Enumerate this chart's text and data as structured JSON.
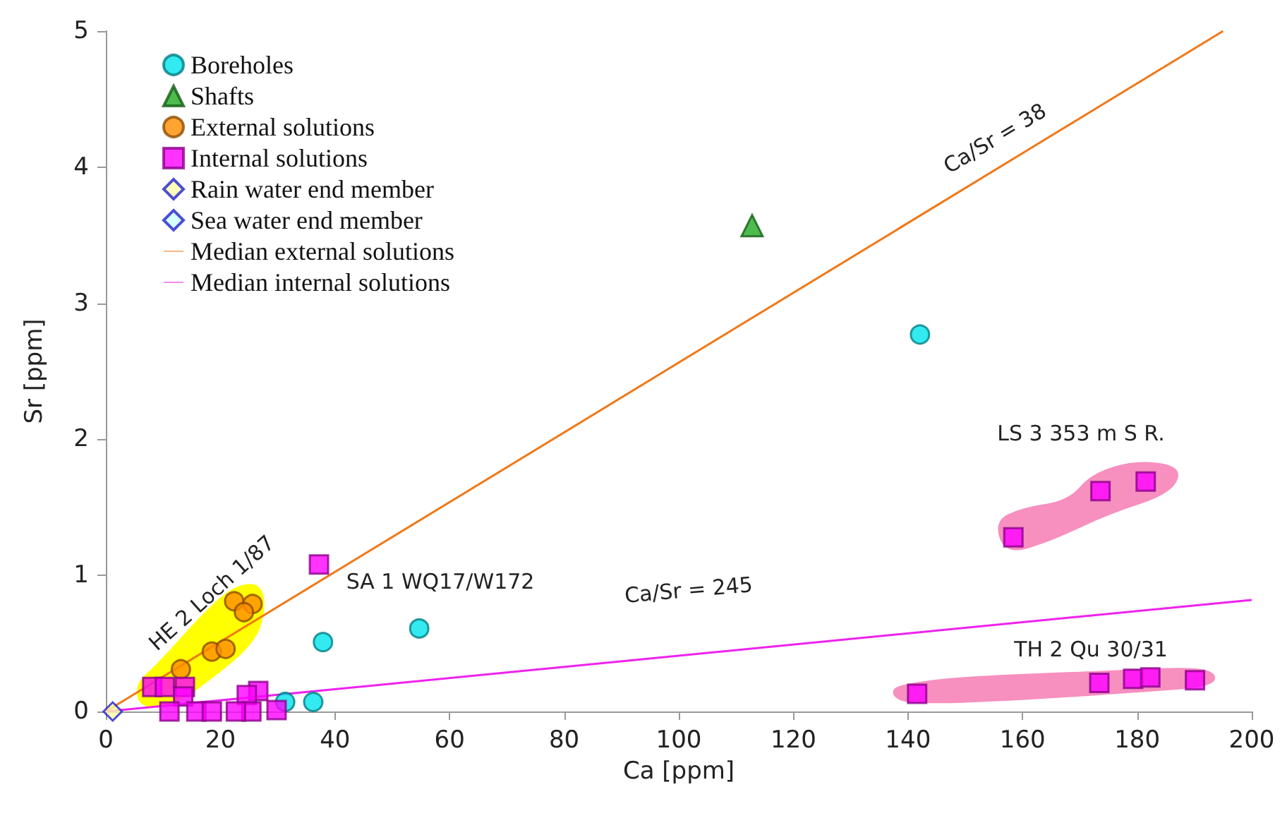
{
  "chart_data": {
    "type": "scatter",
    "xlabel": "Ca [ppm]",
    "ylabel": "Sr [ppm]",
    "xlim": [
      0,
      200
    ],
    "ylim": [
      0,
      5
    ],
    "xticks": [
      0,
      20,
      40,
      60,
      80,
      100,
      120,
      140,
      160,
      180,
      200
    ],
    "yticks": [
      0,
      1,
      2,
      3,
      4,
      5
    ],
    "grid": false,
    "legend": "top left",
    "series": [
      {
        "name": "Boreholes",
        "color": "#00e5ee",
        "marker": "circle",
        "x": [
          142.1,
          54.7,
          37.9,
          31.3,
          36.2
        ],
        "values": [
          2.77,
          0.61,
          0.51,
          0.07,
          0.07
        ]
      },
      {
        "name": "Shafts",
        "color": "#22aa22",
        "marker": "triangle",
        "x": [
          112.8
        ],
        "values": [
          3.57
        ]
      },
      {
        "name": "External solutions",
        "color": "#ff8c00",
        "marker": "circle",
        "x": [
          22.4,
          25.6,
          24.1,
          18.5,
          20.9,
          13.1
        ],
        "values": [
          0.81,
          0.79,
          0.73,
          0.44,
          0.46,
          0.31
        ]
      },
      {
        "name": "Internal solutions",
        "color": "#ff00ff",
        "marker": "square",
        "x": [
          37.2,
          158.4,
          173.6,
          181.5,
          141.6,
          173.4,
          179.3,
          182.3,
          190.1,
          8.1,
          10.3,
          13.8,
          13.5,
          11.1,
          15.8,
          18.5,
          26.6,
          24.6,
          25.4,
          29.8,
          22.7
        ],
        "values": [
          1.08,
          1.28,
          1.62,
          1.69,
          0.13,
          0.21,
          0.24,
          0.25,
          0.23,
          0.18,
          0.18,
          0.18,
          0.11,
          0,
          0,
          0,
          0.15,
          0.12,
          0,
          0.01,
          0
        ]
      },
      {
        "name": "Rain water end member",
        "color": "#ffffaa",
        "marker": "diamond",
        "x": [
          1.2
        ],
        "values": [
          0
        ]
      },
      {
        "name": "Sea water end member",
        "color": "#ccffff",
        "marker": "diamond"
      },
      {
        "name": "Median external solutions",
        "color": "#f07818",
        "type": "line",
        "marker": "none",
        "x": [
          0,
          195
        ],
        "values": [
          0,
          5
        ]
      },
      {
        "name": "Median internal solutions",
        "color": "#ee22ee",
        "type": "line",
        "marker": "none",
        "x": [
          0,
          200
        ],
        "values": [
          0,
          0.82
        ]
      }
    ],
    "annotations": [
      "Ca/Sr = 38",
      "Ca/Sr = 245",
      "HE 2 Loch 1/87",
      "SA 1 WQ17/W172",
      "LS 3 353 m S R.",
      "TH 2 Qu 30/31"
    ]
  }
}
